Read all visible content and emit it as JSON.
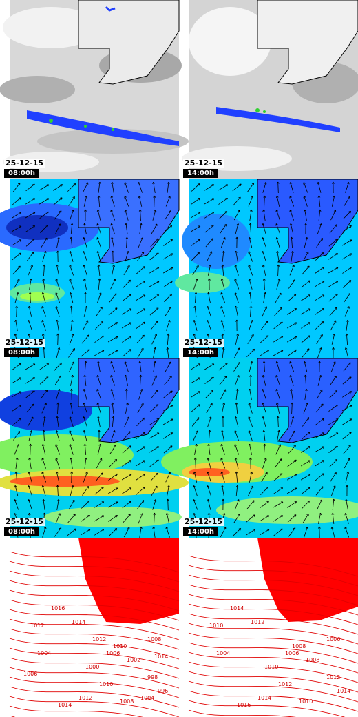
{
  "rows": [
    {
      "panels": [
        {
          "date": "25-12-15",
          "time": "08:00h"
        },
        {
          "date": "25-12-15",
          "time": "14:00h"
        }
      ]
    },
    {
      "panels": [
        {
          "date": "25-12-15",
          "time": "08:00h"
        },
        {
          "date": "25-12-15",
          "time": "14:00h"
        }
      ]
    },
    {
      "panels": [
        {
          "date": "25-12-15",
          "time": "08:00h"
        },
        {
          "date": "25-12-15",
          "time": "14:00h"
        }
      ]
    },
    {
      "panels": [
        {},
        {}
      ]
    }
  ],
  "isobars": {
    "left": [
      "1016",
      "1014",
      "1012",
      "1010",
      "1008",
      "1006",
      "1004",
      "1002",
      "1000",
      "998",
      "996",
      "1014",
      "1012",
      "1010",
      "1008",
      "1006",
      "1004",
      "1012",
      "1014"
    ],
    "right": [
      "1014",
      "1012",
      "1010",
      "1008",
      "1006",
      "1006",
      "1004",
      "1008",
      "1010",
      "1012",
      "1014",
      "1016",
      "1014",
      "1012",
      "1010"
    ]
  },
  "colors": {
    "land_red": "#ff0000",
    "coast": "#000000",
    "sea_cyan": "#00e0ff",
    "rain_blue": "#1030ff"
  }
}
